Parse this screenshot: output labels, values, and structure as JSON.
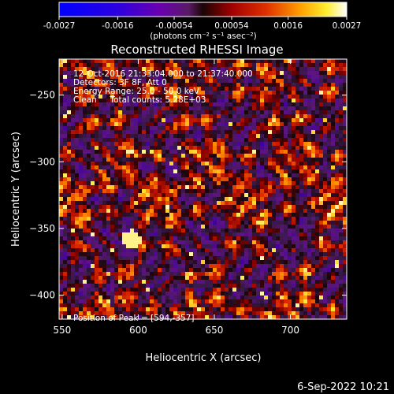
{
  "chart_data": {
    "type": "heatmap",
    "title": "Reconstructed RHESSI Image",
    "xlabel": "Heliocentric X (arcsec)",
    "ylabel": "Heliocentric Y (arcsec)",
    "xlim": [
      548,
      737
    ],
    "ylim": [
      -418,
      -223
    ],
    "x_ticks": [
      550,
      600,
      650,
      700
    ],
    "y_ticks": [
      -250,
      -300,
      -350,
      -400
    ],
    "colorbar": {
      "range": [
        -0.0027,
        0.0027
      ],
      "tick_values": [
        -0.0027,
        -0.0016,
        -0.00054,
        0.00054,
        0.0016,
        0.0027
      ],
      "tick_labels": [
        "-0.0027",
        "-0.0016",
        "-0.00054",
        "0.00054",
        "0.0016",
        "0.0027"
      ],
      "units": "(photons cm⁻² s⁻¹ asec⁻²)",
      "colormap": "RHESSI blue-red-yellow-white"
    },
    "peak": {
      "x": 594,
      "y": -357
    },
    "grid": false
  },
  "info": {
    "line1": "12-Oct-2016 21:33:04.000 to 21:37:40.000",
    "line2": "Detectors: 3F 8F, Att 0",
    "line3": "Energy Range: 25.0 - 50.0 keV",
    "line4": "Clean     Total counts: 5.28E+03",
    "peak_text": "Position of Peak = [594,-357]"
  },
  "footer": {
    "date": "6-Sep-2022 10:21"
  }
}
